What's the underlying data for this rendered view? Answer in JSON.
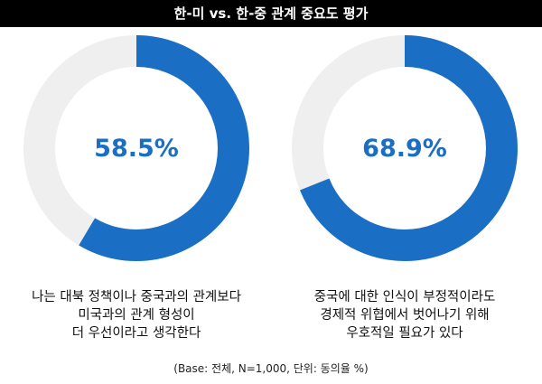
{
  "header": {
    "title": "한-미 vs. 한-중 관계 중요도 평가"
  },
  "chart_data": {
    "type": "pie",
    "charts": [
      {
        "value": 58.5,
        "value_label": "58.5%",
        "caption_lines": [
          "나는 대북 정책이나 중국과의 관계보다",
          "미국과의 관계 형성이",
          "더 우선이라고 생각한다"
        ]
      },
      {
        "value": 68.9,
        "value_label": "68.9%",
        "caption_lines": [
          "중국에 대한 인식이 부정적이라도",
          "경제적 위협에서 벗어나기 위해",
          "우호적일 필요가 있다"
        ]
      }
    ],
    "colors": {
      "filled": "#1a6fc5",
      "track": "#efefef"
    }
  },
  "footnote": "(Base: 전체, N=1,000, 단위: 동의율 %)"
}
